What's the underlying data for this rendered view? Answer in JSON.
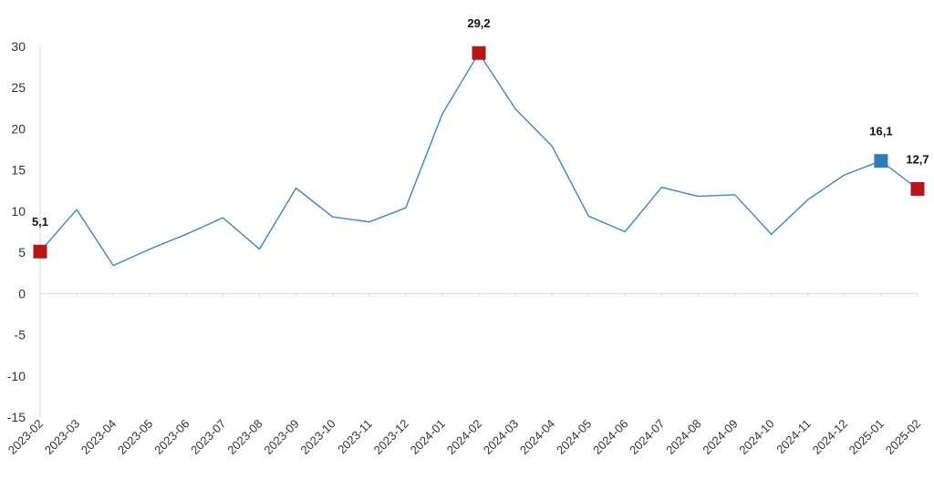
{
  "chart_data": {
    "type": "line",
    "categories": [
      "2023-02",
      "2023-03",
      "2023-04",
      "2023-05",
      "2023-06",
      "2023-07",
      "2023-08",
      "2023-09",
      "2023-10",
      "2023-11",
      "2023-12",
      "2024-01",
      "2024-02",
      "2024-03",
      "2024-04",
      "2024-05",
      "2024-06",
      "2024-07",
      "2024-08",
      "2024-09",
      "2024-10",
      "2024-11",
      "2024-12",
      "2025-01",
      "2025-02"
    ],
    "series": [
      {
        "values": [
          5.1,
          10.2,
          3.4,
          5.4,
          7.2,
          9.2,
          5.4,
          12.8,
          9.3,
          8.7,
          10.4,
          21.8,
          29.2,
          22.4,
          17.9,
          9.4,
          7.5,
          12.9,
          11.8,
          12.0,
          7.2,
          11.4,
          14.4,
          16.1,
          12.7
        ]
      }
    ],
    "ylim": [
      -15,
      30
    ],
    "yticks": [
      30,
      25,
      20,
      15,
      10,
      5,
      0,
      -5,
      -10,
      -15
    ],
    "title": "",
    "xlabel": "",
    "ylabel": "",
    "line_color": "#3a86c8",
    "highlights": [
      {
        "index": 0,
        "label": "5,1",
        "color": "#b5161c"
      },
      {
        "index": 12,
        "label": "29,2",
        "color": "#b5161c"
      },
      {
        "index": 23,
        "label": "16,1",
        "color": "#2f7ab9"
      },
      {
        "index": 24,
        "label": "12,7",
        "color": "#b5161c"
      }
    ],
    "grid": false,
    "legend": "none"
  }
}
